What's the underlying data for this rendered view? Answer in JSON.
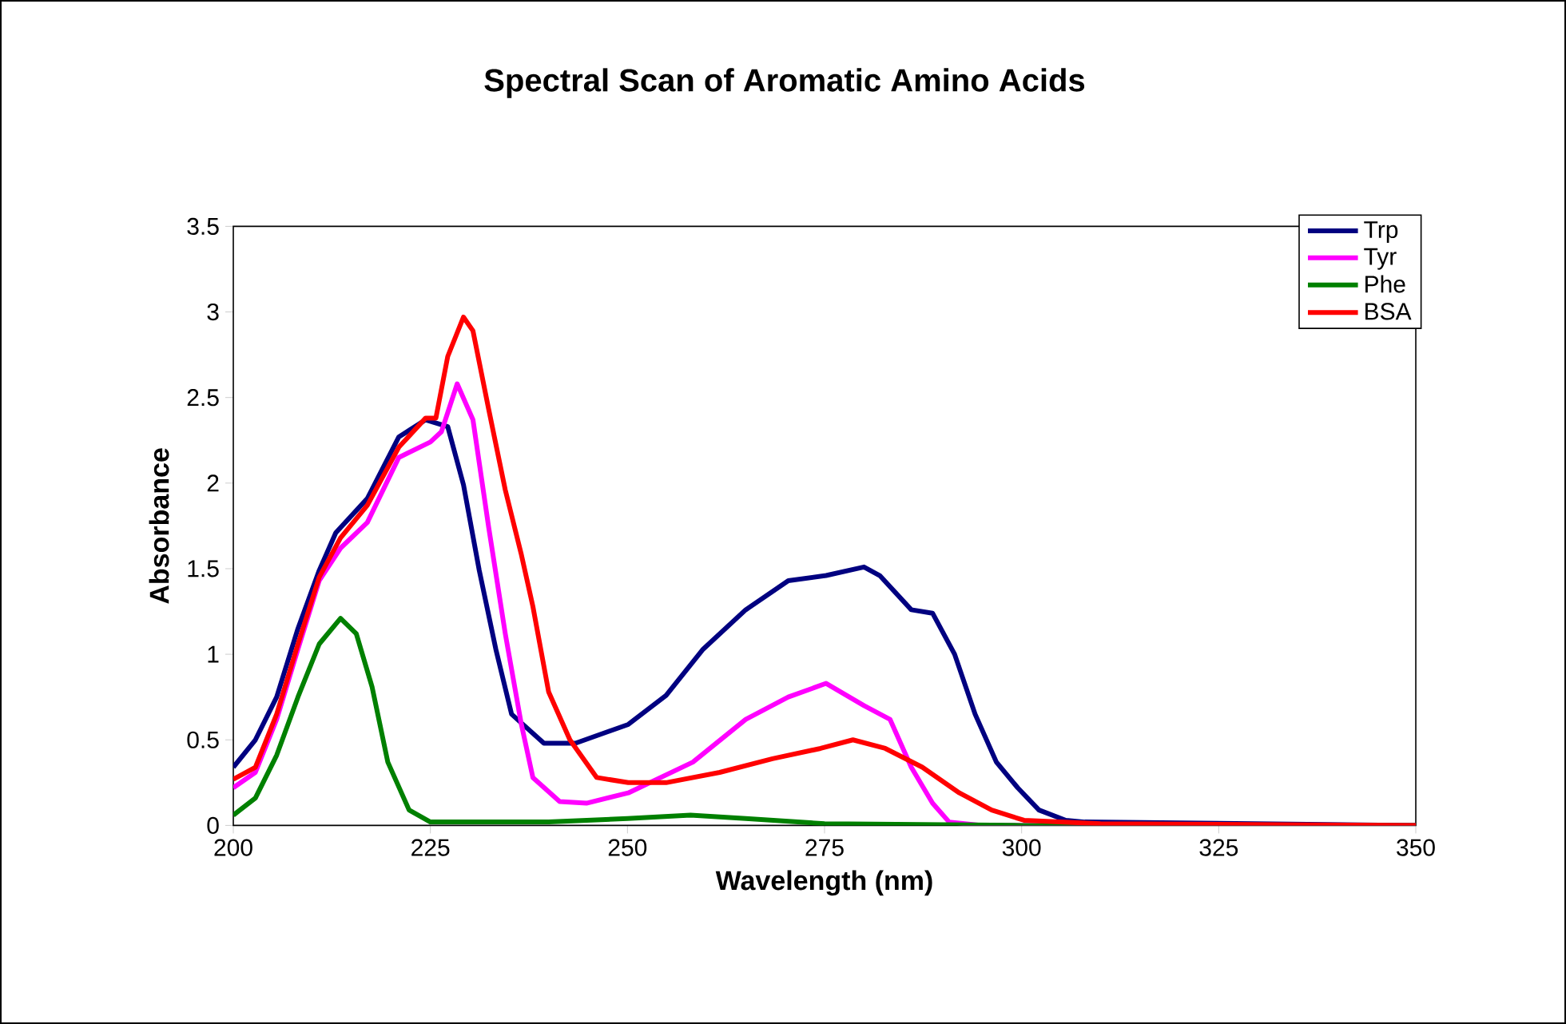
{
  "chart_data": {
    "type": "line",
    "title": "Spectral Scan of Aromatic Amino Acids",
    "xlabel": "Wavelength (nm)",
    "ylabel": "Absorbance",
    "xlim": [
      200,
      350
    ],
    "xticks": [
      200,
      225,
      250,
      275,
      300,
      325,
      350
    ],
    "ylim": [
      0,
      3.5
    ],
    "yticks": [
      0,
      0.5,
      1,
      1.5,
      2,
      2.5,
      3,
      3.5
    ],
    "grid": false,
    "legend": "top right",
    "marker": "none",
    "line_style": "solid",
    "series": [
      {
        "name": "Trp",
        "color": "#000080",
        "x": [
          200,
          202.8,
          205.5,
          208.2,
          210.9,
          213,
          217,
          221,
          224.4,
          227.2,
          229.2,
          231.2,
          233.3,
          235.3,
          239.4,
          243.4,
          250.1,
          254.9,
          259.6,
          265,
          270.4,
          275.2,
          280,
          282,
          286,
          288.7,
          291.5,
          294.1,
          296.8,
          299.5,
          302.2,
          305.6,
          308,
          350
        ],
        "values": [
          0.34,
          0.5,
          0.75,
          1.15,
          1.49,
          1.71,
          1.91,
          2.27,
          2.37,
          2.33,
          1.99,
          1.49,
          1.03,
          0.65,
          0.48,
          0.48,
          0.59,
          0.76,
          1.03,
          1.26,
          1.43,
          1.46,
          1.51,
          1.46,
          1.26,
          1.24,
          1.0,
          0.65,
          0.37,
          0.22,
          0.09,
          0.03,
          0.02,
          0
        ]
      },
      {
        "name": "Tyr",
        "color": "#ff00ff",
        "x": [
          200,
          202.8,
          205.5,
          208.2,
          210.9,
          213.6,
          217,
          221,
          225,
          226.4,
          228.4,
          230.4,
          232.4,
          234.5,
          236.5,
          238,
          241.4,
          244.8,
          250.1,
          258.3,
          265,
          270.4,
          275.2,
          280,
          283.3,
          286,
          288.7,
          290.8,
          295,
          350
        ],
        "values": [
          0.22,
          0.31,
          0.62,
          1.03,
          1.43,
          1.62,
          1.77,
          2.15,
          2.24,
          2.3,
          2.58,
          2.37,
          1.74,
          1.12,
          0.6,
          0.28,
          0.14,
          0.13,
          0.19,
          0.37,
          0.62,
          0.75,
          0.83,
          0.7,
          0.62,
          0.34,
          0.13,
          0.02,
          0,
          0
        ]
      },
      {
        "name": "Phe",
        "color": "#008000",
        "x": [
          200,
          202.8,
          205.5,
          208.2,
          210.9,
          213.6,
          215.6,
          217.6,
          219.6,
          222.3,
          225,
          240,
          250,
          258,
          265,
          275,
          300,
          350
        ],
        "values": [
          0.06,
          0.16,
          0.41,
          0.75,
          1.06,
          1.21,
          1.12,
          0.81,
          0.37,
          0.09,
          0.02,
          0.02,
          0.04,
          0.06,
          0.04,
          0.01,
          0,
          0
        ]
      },
      {
        "name": "BSA",
        "color": "#ff0000",
        "x": [
          200,
          202.8,
          205.5,
          208.2,
          210.9,
          213.6,
          217,
          221,
          224.4,
          225.7,
          227.2,
          229.2,
          230.4,
          232.4,
          234.5,
          236.5,
          238,
          240,
          242.7,
          246.1,
          250.1,
          254.9,
          261.7,
          268.4,
          274.5,
          278.6,
          282.7,
          287.4,
          292.1,
          296.2,
          300.3,
          310,
          350
        ],
        "values": [
          0.27,
          0.34,
          0.65,
          1.06,
          1.45,
          1.68,
          1.87,
          2.21,
          2.38,
          2.38,
          2.74,
          2.97,
          2.89,
          2.43,
          1.96,
          1.59,
          1.28,
          0.78,
          0.5,
          0.28,
          0.25,
          0.25,
          0.31,
          0.39,
          0.45,
          0.5,
          0.45,
          0.34,
          0.19,
          0.09,
          0.03,
          0.01,
          0
        ]
      }
    ]
  }
}
